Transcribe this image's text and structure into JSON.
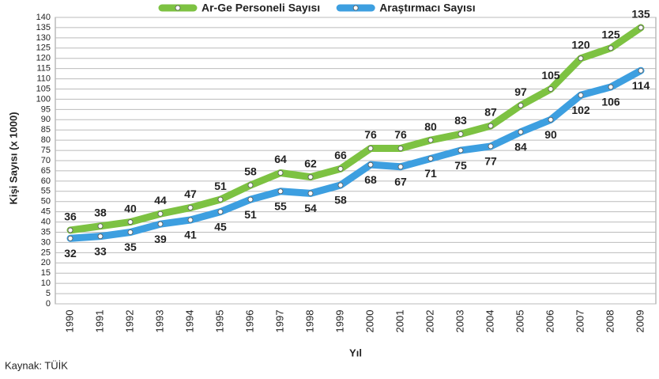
{
  "chart_data": {
    "type": "line",
    "categories": [
      "1990",
      "1991",
      "1992",
      "1993",
      "1994",
      "1995",
      "1996",
      "1997",
      "1998",
      "1999",
      "2000",
      "2001",
      "2002",
      "2003",
      "2004",
      "2005",
      "2006",
      "2007",
      "2008",
      "2009"
    ],
    "series": [
      {
        "name": "Ar-Ge Personeli Sayısı",
        "color": "#7dc242",
        "values": [
          36,
          38,
          40,
          44,
          47,
          51,
          58,
          64,
          62,
          66,
          76,
          76,
          80,
          83,
          87,
          97,
          105,
          120,
          125,
          135
        ]
      },
      {
        "name": "Araştırmacı Sayısı",
        "color": "#3d9fe0",
        "values": [
          32,
          33,
          35,
          39,
          41,
          45,
          51,
          55,
          54,
          58,
          68,
          67,
          71,
          75,
          77,
          84,
          90,
          102,
          106,
          114
        ]
      }
    ],
    "ylim": [
      0,
      140
    ],
    "yticks": [
      0,
      5,
      10,
      15,
      20,
      25,
      30,
      35,
      40,
      45,
      50,
      55,
      60,
      65,
      70,
      75,
      80,
      85,
      90,
      95,
      100,
      105,
      110,
      115,
      120,
      125,
      130,
      135,
      140
    ],
    "grid": true,
    "legend": "top",
    "y_label": "Kişi Sayısı (x 1000)",
    "x_label": "Yıl",
    "source": "Kaynak: TÜİK"
  }
}
